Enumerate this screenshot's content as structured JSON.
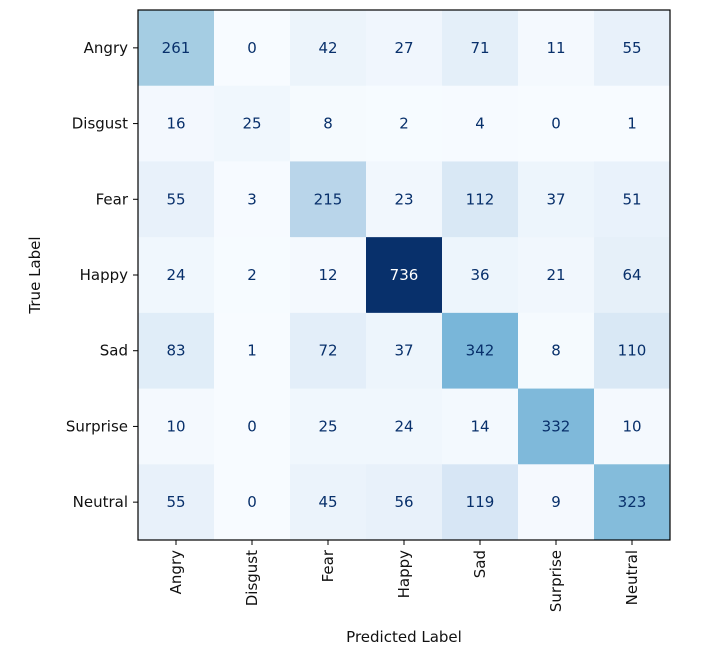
{
  "chart_data": {
    "type": "heatmap",
    "title": "",
    "xlabel": "Predicted Label",
    "ylabel": "True Label",
    "x_categories": [
      "Angry",
      "Disgust",
      "Fear",
      "Happy",
      "Sad",
      "Surprise",
      "Neutral"
    ],
    "y_categories": [
      "Angry",
      "Disgust",
      "Fear",
      "Happy",
      "Sad",
      "Surprise",
      "Neutral"
    ],
    "values": [
      [
        261,
        0,
        42,
        27,
        71,
        11,
        55
      ],
      [
        16,
        25,
        8,
        2,
        4,
        0,
        1
      ],
      [
        55,
        3,
        215,
        23,
        112,
        37,
        51
      ],
      [
        24,
        2,
        12,
        736,
        36,
        21,
        64
      ],
      [
        83,
        1,
        72,
        37,
        342,
        8,
        110
      ],
      [
        10,
        0,
        25,
        24,
        14,
        332,
        10
      ],
      [
        55,
        0,
        45,
        56,
        119,
        9,
        323
      ]
    ],
    "colormap": "Blues",
    "value_range": [
      0,
      736
    ],
    "colorbar": false,
    "grid": false
  }
}
